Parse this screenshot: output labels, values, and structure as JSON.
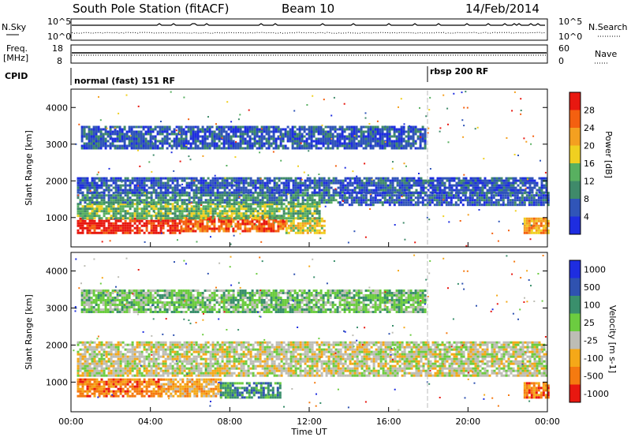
{
  "header": {
    "station": "South Pole Station (fitACF)",
    "beam": "Beam 10",
    "date": "14/Feb/2014"
  },
  "top_panels": {
    "nsky_label": "N.Sky",
    "nsearch_label": "N.Search",
    "freq_label_1": "Freq.",
    "freq_label_2": "[MHz]",
    "nave_label": "Nave",
    "cpid_label": "CPID",
    "noise_ticks": [
      "10^5",
      "10^0"
    ],
    "freq_ticks": [
      "18",
      "8"
    ],
    "nave_ticks": [
      "60",
      "0"
    ],
    "cpid_1": "normal (fast) 151 RF",
    "cpid_2": "rbsp 200 RF"
  },
  "chart_data": [
    {
      "type": "heatmap",
      "title": "",
      "xlabel": "Time UT",
      "ylabel": "Slant Range [km]",
      "colorbar_label": "Power [dB]",
      "xlim": [
        "00:00",
        "24:00"
      ],
      "ylim": [
        200,
        4500
      ],
      "x_ticks": [
        "00:00",
        "04:00",
        "08:00",
        "12:00",
        "16:00",
        "20:00",
        "00:00"
      ],
      "y_ticks": [
        1000,
        2000,
        3000,
        4000
      ],
      "colorbar_ticks": [
        4,
        8,
        12,
        16,
        20,
        24,
        28
      ],
      "colorbar_range": [
        0,
        32
      ],
      "colors": [
        "#1e2de0",
        "#3055b8",
        "#3f8a6a",
        "#58b060",
        "#f0d020",
        "#f4a020",
        "#f46010",
        "#e81810"
      ],
      "regions": [
        {
          "t0": 0.3,
          "t1": 5.5,
          "r0": 600,
          "r1": 1000,
          "level": 28
        },
        {
          "t0": 5.5,
          "t1": 10.8,
          "r0": 600,
          "r1": 1050,
          "level": 26
        },
        {
          "t0": 10.8,
          "t1": 12.8,
          "r0": 600,
          "r1": 1000,
          "level": 18
        },
        {
          "t0": 0.3,
          "t1": 12.5,
          "r0": 1000,
          "r1": 1400,
          "level": 13
        },
        {
          "t0": 0.3,
          "t1": 13.5,
          "r0": 1400,
          "r1": 1700,
          "level": 10
        },
        {
          "t0": 0.3,
          "t1": 24,
          "r0": 1700,
          "r1": 2100,
          "level": 7
        },
        {
          "t0": 13.5,
          "t1": 24,
          "r0": 1350,
          "r1": 1700,
          "level": 6
        },
        {
          "t0": 0.5,
          "t1": 17.8,
          "r0": 2900,
          "r1": 3500,
          "level": 4
        },
        {
          "t0": 22.8,
          "t1": 24,
          "r0": 600,
          "r1": 1000,
          "level": 20
        }
      ]
    },
    {
      "type": "heatmap",
      "title": "",
      "xlabel": "Time UT",
      "ylabel": "Slant Range [km]",
      "colorbar_label": "Velocity [m s-1]",
      "xlim": [
        "00:00",
        "24:00"
      ],
      "ylim": [
        200,
        4500
      ],
      "x_ticks": [
        "00:00",
        "04:00",
        "08:00",
        "12:00",
        "16:00",
        "20:00",
        "00:00"
      ],
      "y_ticks": [
        1000,
        2000,
        3000,
        4000
      ],
      "colorbar_ticks": [
        "1000",
        "500",
        "100",
        "25",
        "-25",
        "-100",
        "-500",
        "-1000"
      ],
      "colors": [
        "#1e2de0",
        "#2f52b0",
        "#3a8f6c",
        "#6ccc40",
        "#bdbdb5",
        "#f5a818",
        "#f57a10",
        "#e81810"
      ],
      "regions": [
        {
          "t0": 0.3,
          "t1": 4.5,
          "r0": 600,
          "r1": 1100,
          "level": "-500"
        },
        {
          "t0": 4.5,
          "t1": 7.5,
          "r0": 600,
          "r1": 1100,
          "level": "-100"
        },
        {
          "t0": 7.5,
          "t1": 10.5,
          "r0": 600,
          "r1": 1000,
          "level": "100"
        },
        {
          "t0": 0.3,
          "t1": 24,
          "r0": 1200,
          "r1": 2100,
          "level": "-25"
        },
        {
          "t0": 0.5,
          "t1": 17.8,
          "r0": 2900,
          "r1": 3500,
          "level": "25"
        },
        {
          "t0": 22.8,
          "t1": 24,
          "r0": 600,
          "r1": 1000,
          "level": "-500"
        }
      ]
    }
  ],
  "color_keys": {
    "outline": "#000000",
    "background": "#ffffff",
    "dashed_marker": "#bbbbbb"
  }
}
